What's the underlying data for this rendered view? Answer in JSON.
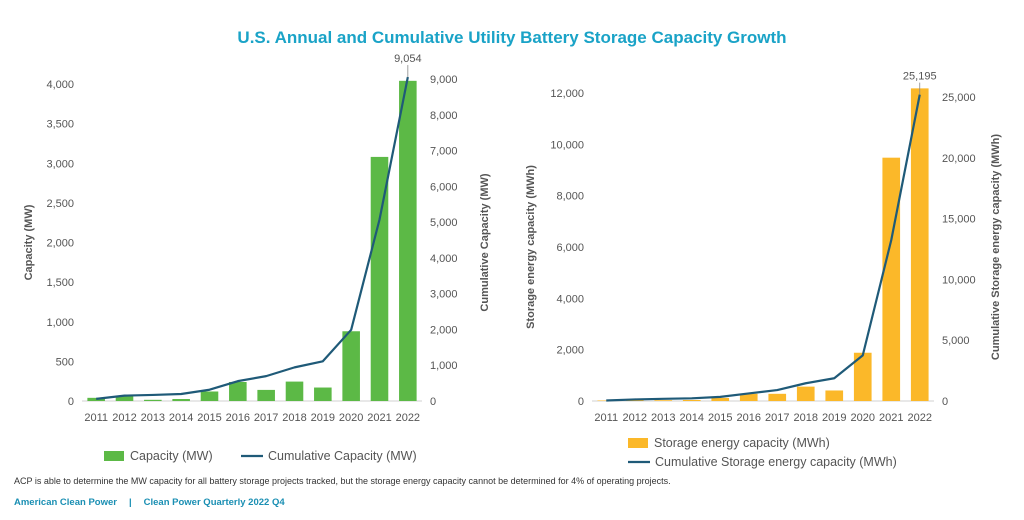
{
  "page": {
    "title": "U.S. Annual and Cumulative Utility Battery Storage Capacity Growth",
    "footnote": "ACP is able to determine the MW capacity for all battery storage projects tracked, but the storage energy capacity cannot be determined for 4% of operating projects.",
    "org": "American Clean Power",
    "separator": "|",
    "publication": "Clean Power Quarterly 2022 Q4"
  },
  "colors": {
    "green": "#5cb946",
    "gold": "#fbb829",
    "line": "#1f5a78",
    "title": "#1aa3c7",
    "axis_text": "#555555"
  },
  "chart_data": [
    {
      "type": "bar",
      "categories": [
        "2011",
        "2012",
        "2013",
        "2014",
        "2015",
        "2016",
        "2017",
        "2018",
        "2019",
        "2020",
        "2021",
        "2022"
      ],
      "series": [
        {
          "name": "Capacity (MW)",
          "axis": "left",
          "values": [
            40,
            60,
            15,
            25,
            120,
            240,
            140,
            245,
            170,
            880,
            3080,
            4040
          ]
        },
        {
          "name": "Cumulative Capacity (MW)",
          "type": "line",
          "axis": "right",
          "values": [
            60,
            150,
            170,
            195,
            315,
            555,
            695,
            940,
            1110,
            1990,
            5070,
            9054
          ]
        }
      ],
      "ylabel": "Capacity (MW)",
      "y2label": "Cumulative Capacity (MW)",
      "ylim": [
        0,
        4000
      ],
      "y2lim": [
        0,
        9000
      ],
      "yticks": [
        "0",
        "500",
        "1,000",
        "1,500",
        "2,000",
        "2,500",
        "3,000",
        "3,500",
        "4,000"
      ],
      "y2ticks": [
        "0",
        "1,000",
        "2,000",
        "3,000",
        "4,000",
        "5,000",
        "6,000",
        "7,000",
        "8,000",
        "9,000"
      ],
      "annotation": "9,054",
      "grid": false,
      "legend": "bottom"
    },
    {
      "type": "bar",
      "categories": [
        "2011",
        "2012",
        "2013",
        "2014",
        "2015",
        "2016",
        "2017",
        "2018",
        "2019",
        "2020",
        "2021",
        "2022"
      ],
      "series": [
        {
          "name": "Storage energy capacity (MWh)",
          "axis": "left",
          "values": [
            20,
            40,
            30,
            40,
            120,
            280,
            280,
            560,
            410,
            1880,
            9480,
            12180
          ]
        },
        {
          "name": "Cumulative Storage energy capacity (MWh)",
          "type": "line",
          "axis": "right",
          "values": [
            40,
            130,
            180,
            220,
            340,
            620,
            900,
            1460,
            1870,
            3750,
            13230,
            25195
          ]
        }
      ],
      "ylabel": "Storage energy capacity (MWh)",
      "y2label": "Cumulative Storage energy capacity (MWh)",
      "ylim": [
        0,
        12000
      ],
      "y2lim": [
        0,
        25000
      ],
      "yticks": [
        "0",
        "2,000",
        "4,000",
        "6,000",
        "8,000",
        "10,000",
        "12,000"
      ],
      "y2ticks": [
        "0",
        "5,000",
        "10,000",
        "15,000",
        "20,000",
        "25,000"
      ],
      "annotation": "25,195",
      "grid": false,
      "legend": "bottom"
    }
  ]
}
